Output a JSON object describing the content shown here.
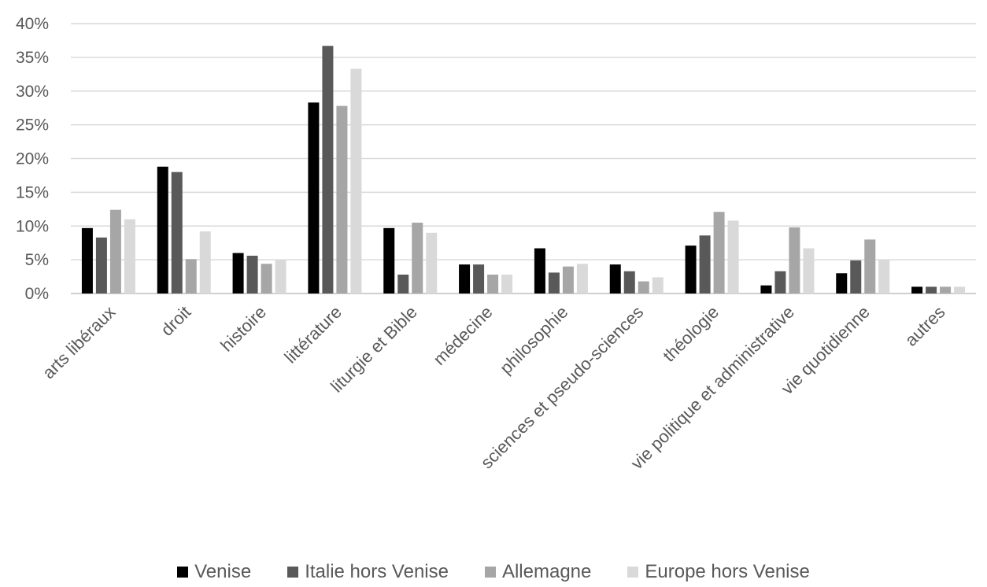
{
  "chart_data": {
    "type": "bar",
    "title": "",
    "xlabel": "",
    "ylabel": "",
    "ylim": [
      0,
      40
    ],
    "yticks": [
      "0%",
      "5%",
      "10%",
      "15%",
      "20%",
      "25%",
      "30%",
      "35%",
      "40%"
    ],
    "grid": true,
    "legend_position": "bottom",
    "categories": [
      "arts libéraux",
      "droit",
      "histoire",
      "littérature",
      "liturgie et Bible",
      "médecine",
      "philosophie",
      "sciences et pseudo-sciences",
      "théologie",
      "vie politique et administrative",
      "vie quotidienne",
      "autres"
    ],
    "series": [
      {
        "name": "Venise",
        "color": "#000000",
        "values": [
          9.7,
          18.8,
          6.0,
          28.3,
          9.7,
          4.3,
          6.7,
          4.3,
          7.1,
          1.2,
          3.0,
          1.0
        ]
      },
      {
        "name": "Italie hors Venise",
        "color": "#595959",
        "values": [
          8.3,
          18.0,
          5.6,
          36.7,
          2.8,
          4.3,
          3.1,
          3.3,
          8.6,
          3.3,
          4.9,
          1.0
        ]
      },
      {
        "name": "Allemagne",
        "color": "#a6a6a6",
        "values": [
          12.4,
          5.1,
          4.4,
          27.8,
          10.5,
          2.8,
          4.0,
          1.8,
          12.1,
          9.8,
          8.0,
          1.0
        ]
      },
      {
        "name": "Europe hors Venise",
        "color": "#d9d9d9",
        "values": [
          11.0,
          9.2,
          5.0,
          33.3,
          9.0,
          2.8,
          4.4,
          2.4,
          10.8,
          6.7,
          5.0,
          1.0
        ]
      }
    ]
  }
}
